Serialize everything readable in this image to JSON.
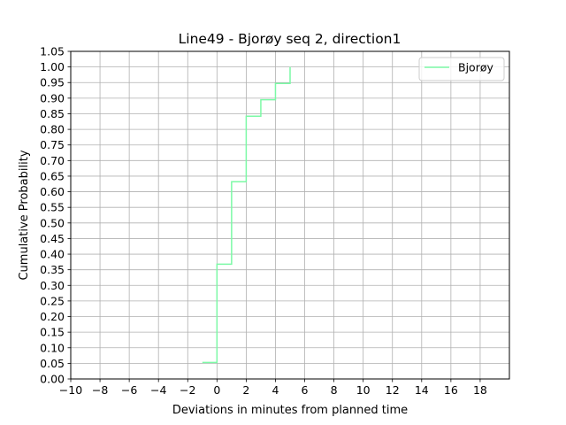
{
  "chart_data": {
    "type": "line",
    "step": "post",
    "title": "Line49 - Bjorøy seq 2, direction1",
    "xlabel": "Deviations in minutes from planned time",
    "ylabel": "Cumulative Probability",
    "xlim": [
      -10,
      20
    ],
    "ylim": [
      0,
      1.05
    ],
    "x_ticks": [
      -10,
      -8,
      -6,
      -4,
      -2,
      0,
      2,
      4,
      6,
      8,
      10,
      12,
      14,
      16,
      18
    ],
    "x_tick_labels": [
      "−10",
      "−8",
      "−6",
      "−4",
      "−2",
      "0",
      "2",
      "4",
      "6",
      "8",
      "10",
      "12",
      "14",
      "16",
      "18"
    ],
    "y_ticks": [
      0,
      0.05,
      0.1,
      0.15,
      0.2,
      0.25,
      0.3,
      0.35,
      0.4,
      0.45,
      0.5,
      0.55,
      0.6,
      0.65,
      0.7,
      0.75,
      0.8,
      0.85,
      0.9,
      0.95,
      1.0,
      1.05
    ],
    "y_tick_labels": [
      "0.00",
      "0.05",
      "0.10",
      "0.15",
      "0.20",
      "0.25",
      "0.30",
      "0.35",
      "0.40",
      "0.45",
      "0.50",
      "0.55",
      "0.60",
      "0.65",
      "0.70",
      "0.75",
      "0.80",
      "0.85",
      "0.90",
      "0.95",
      "1.00",
      "1.05"
    ],
    "grid": true,
    "legend_position": "upper-right",
    "series": [
      {
        "name": "Bjorøy",
        "color": "#7cf9a6",
        "x": [
          -1,
          0,
          1,
          2,
          3,
          4,
          5
        ],
        "y": [
          0.053,
          0.368,
          0.632,
          0.842,
          0.895,
          0.947,
          1.0
        ]
      }
    ]
  }
}
